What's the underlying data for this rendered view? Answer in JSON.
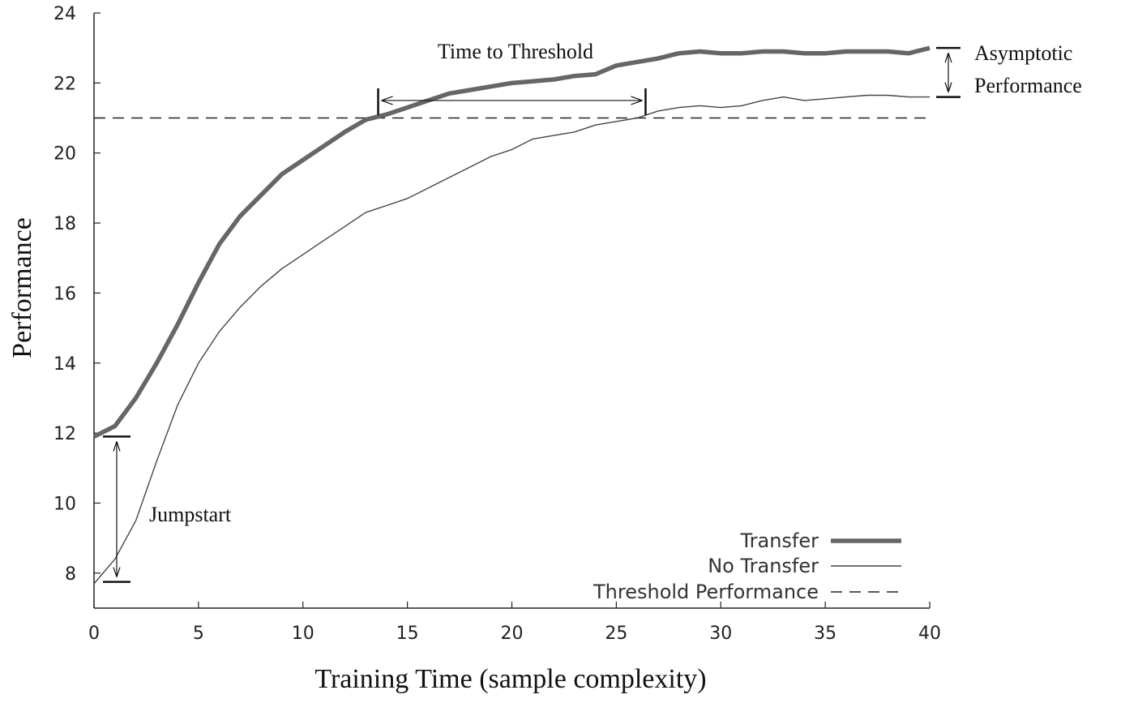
{
  "chart_data": {
    "type": "line",
    "title": "",
    "xlabel": "Training Time (sample complexity)",
    "ylabel": "Performance",
    "xlim": [
      0,
      40
    ],
    "ylim": [
      7,
      24
    ],
    "xticks": [
      0,
      5,
      10,
      15,
      20,
      25,
      30,
      35,
      40
    ],
    "yticks": [
      8,
      10,
      12,
      14,
      16,
      18,
      20,
      22,
      24
    ],
    "grid": false,
    "legend_position": "bottom-right",
    "series": [
      {
        "name": "Transfer",
        "color": "#666666",
        "style": "thick-solid",
        "x": [
          0,
          1,
          2,
          3,
          4,
          5,
          6,
          7,
          8,
          9,
          10,
          11,
          12,
          13,
          14,
          15,
          16,
          17,
          18,
          19,
          20,
          21,
          22,
          23,
          24,
          25,
          26,
          27,
          28,
          29,
          30,
          31,
          32,
          33,
          34,
          35,
          36,
          37,
          38,
          39,
          40
        ],
        "y": [
          11.9,
          12.2,
          13.0,
          14.0,
          15.1,
          16.3,
          17.4,
          18.2,
          18.8,
          19.4,
          19.8,
          20.2,
          20.6,
          20.95,
          21.1,
          21.3,
          21.5,
          21.7,
          21.8,
          21.9,
          22.0,
          22.05,
          22.1,
          22.2,
          22.25,
          22.5,
          22.6,
          22.7,
          22.85,
          22.9,
          22.85,
          22.85,
          22.9,
          22.9,
          22.85,
          22.85,
          22.9,
          22.9,
          22.9,
          22.85,
          23.0
        ]
      },
      {
        "name": "No Transfer",
        "color": "#444444",
        "style": "thin-solid",
        "x": [
          0,
          1,
          2,
          3,
          4,
          5,
          6,
          7,
          8,
          9,
          10,
          11,
          12,
          13,
          14,
          15,
          16,
          17,
          18,
          19,
          20,
          21,
          22,
          23,
          24,
          25,
          26,
          27,
          28,
          29,
          30,
          31,
          32,
          33,
          34,
          35,
          36,
          37,
          38,
          39,
          40
        ],
        "y": [
          7.7,
          8.4,
          9.5,
          11.2,
          12.8,
          14.0,
          14.9,
          15.6,
          16.2,
          16.7,
          17.1,
          17.5,
          17.9,
          18.3,
          18.5,
          18.7,
          19.0,
          19.3,
          19.6,
          19.9,
          20.1,
          20.4,
          20.5,
          20.6,
          20.8,
          20.9,
          21.0,
          21.2,
          21.3,
          21.35,
          21.3,
          21.35,
          21.5,
          21.6,
          21.5,
          21.55,
          21.6,
          21.65,
          21.65,
          21.6,
          21.6
        ]
      },
      {
        "name": "Threshold Performance",
        "color": "#222222",
        "style": "dashed",
        "x": [
          0,
          40
        ],
        "y": [
          21.0,
          21.0
        ]
      }
    ],
    "annotations": [
      {
        "text": "Time to Threshold",
        "x_start": 13.6,
        "x_end": 26.4,
        "y": 21.5
      },
      {
        "text": "Asymptotic Performance",
        "x": 40.4,
        "y_top": 23.0,
        "y_bottom": 21.6
      },
      {
        "text": "Jumpstart",
        "x": 1.0,
        "y_top": 11.9,
        "y_bottom": 7.75
      }
    ]
  },
  "labels": {
    "time_to_threshold": "Time to Threshold",
    "asymptotic_line1": "Asymptotic",
    "asymptotic_line2": "Performance",
    "jumpstart": "Jumpstart"
  }
}
